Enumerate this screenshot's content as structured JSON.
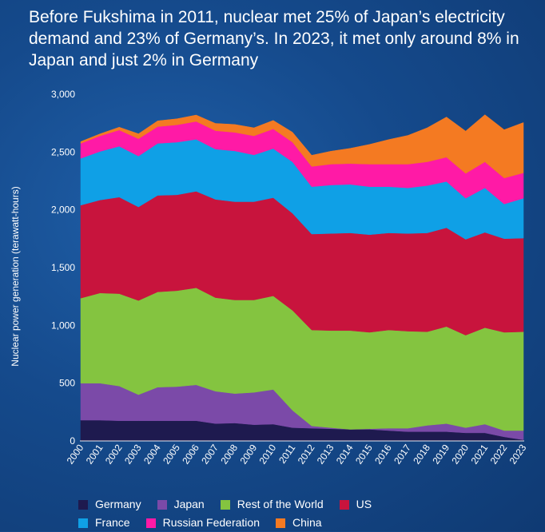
{
  "title": "Before Fukshima in 2011, nuclear met 25% of Japan’s electricity demand and 23% of Germany’s. In 2023, it met only around 8% in Japan and just 2% in Germany",
  "chart_data": {
    "type": "area",
    "stacked": true,
    "title": "Before Fukshima in 2011, nuclear met 25% of Japan’s electricity demand and 23% of Germany’s. In 2023, it met only around 8% in Japan and just 2% in Germany",
    "xlabel": "",
    "ylabel": "Nuclear power generation (terawatt-hours)",
    "ylim": [
      0,
      3000
    ],
    "yticks": [
      "0",
      "500",
      "1,000",
      "1,500",
      "2,000",
      "2,500",
      "3,000"
    ],
    "ytick_values": [
      0,
      500,
      1000,
      1500,
      2000,
      2500,
      3000
    ],
    "x": [
      "2000",
      "2001",
      "2002",
      "2003",
      "2004",
      "2005",
      "2006",
      "2007",
      "2008",
      "2009",
      "2010",
      "2011",
      "2012",
      "2013",
      "2014",
      "2015",
      "2016",
      "2017",
      "2018",
      "2019",
      "2020",
      "2021",
      "2022",
      "2023"
    ],
    "grid": false,
    "legend_position": "bottom",
    "series": [
      {
        "name": "Germany",
        "color": "#1e1a4f",
        "values": [
          180,
          180,
          175,
          175,
          175,
          175,
          175,
          150,
          155,
          140,
          145,
          115,
          110,
          105,
          100,
          100,
          90,
          80,
          80,
          80,
          70,
          70,
          35,
          10
        ]
      },
      {
        "name": "Japan",
        "color": "#7b4aa8",
        "values": [
          320,
          320,
          300,
          225,
          290,
          295,
          310,
          280,
          255,
          280,
          300,
          150,
          20,
          10,
          0,
          5,
          20,
          30,
          55,
          70,
          45,
          75,
          55,
          80
        ]
      },
      {
        "name": "Rest of the World",
        "color": "#84c440",
        "values": [
          735,
          780,
          800,
          815,
          825,
          830,
          840,
          810,
          810,
          800,
          810,
          865,
          830,
          840,
          855,
          835,
          850,
          840,
          810,
          840,
          800,
          835,
          850,
          855
        ]
      },
      {
        "name": "US",
        "color": "#c8143d",
        "values": [
          805,
          805,
          835,
          810,
          835,
          830,
          835,
          850,
          850,
          850,
          850,
          840,
          830,
          840,
          845,
          845,
          840,
          845,
          855,
          855,
          830,
          825,
          810,
          810
        ]
      },
      {
        "name": "France",
        "color": "#0fa0e6",
        "values": [
          405,
          420,
          440,
          440,
          450,
          455,
          450,
          435,
          440,
          405,
          425,
          445,
          410,
          420,
          420,
          415,
          400,
          395,
          410,
          400,
          355,
          385,
          300,
          345
        ]
      },
      {
        "name": "Russian Federation",
        "color": "#ff1aa6",
        "values": [
          130,
          135,
          140,
          150,
          145,
          150,
          155,
          160,
          160,
          165,
          170,
          170,
          175,
          180,
          180,
          195,
          195,
          205,
          205,
          210,
          215,
          225,
          225,
          220
        ]
      },
      {
        "name": "China",
        "color": "#f47a22",
        "values": [
          15,
          17,
          25,
          43,
          50,
          53,
          55,
          63,
          69,
          70,
          74,
          87,
          97,
          112,
          132,
          171,
          213,
          249,
          295,
          348,
          366,
          408,
          418,
          435
        ]
      }
    ]
  },
  "legend": {
    "row1": [
      "Germany",
      "Japan",
      "Rest of the World",
      "US"
    ],
    "row2": [
      "France",
      "Russian Federation",
      "China"
    ]
  }
}
